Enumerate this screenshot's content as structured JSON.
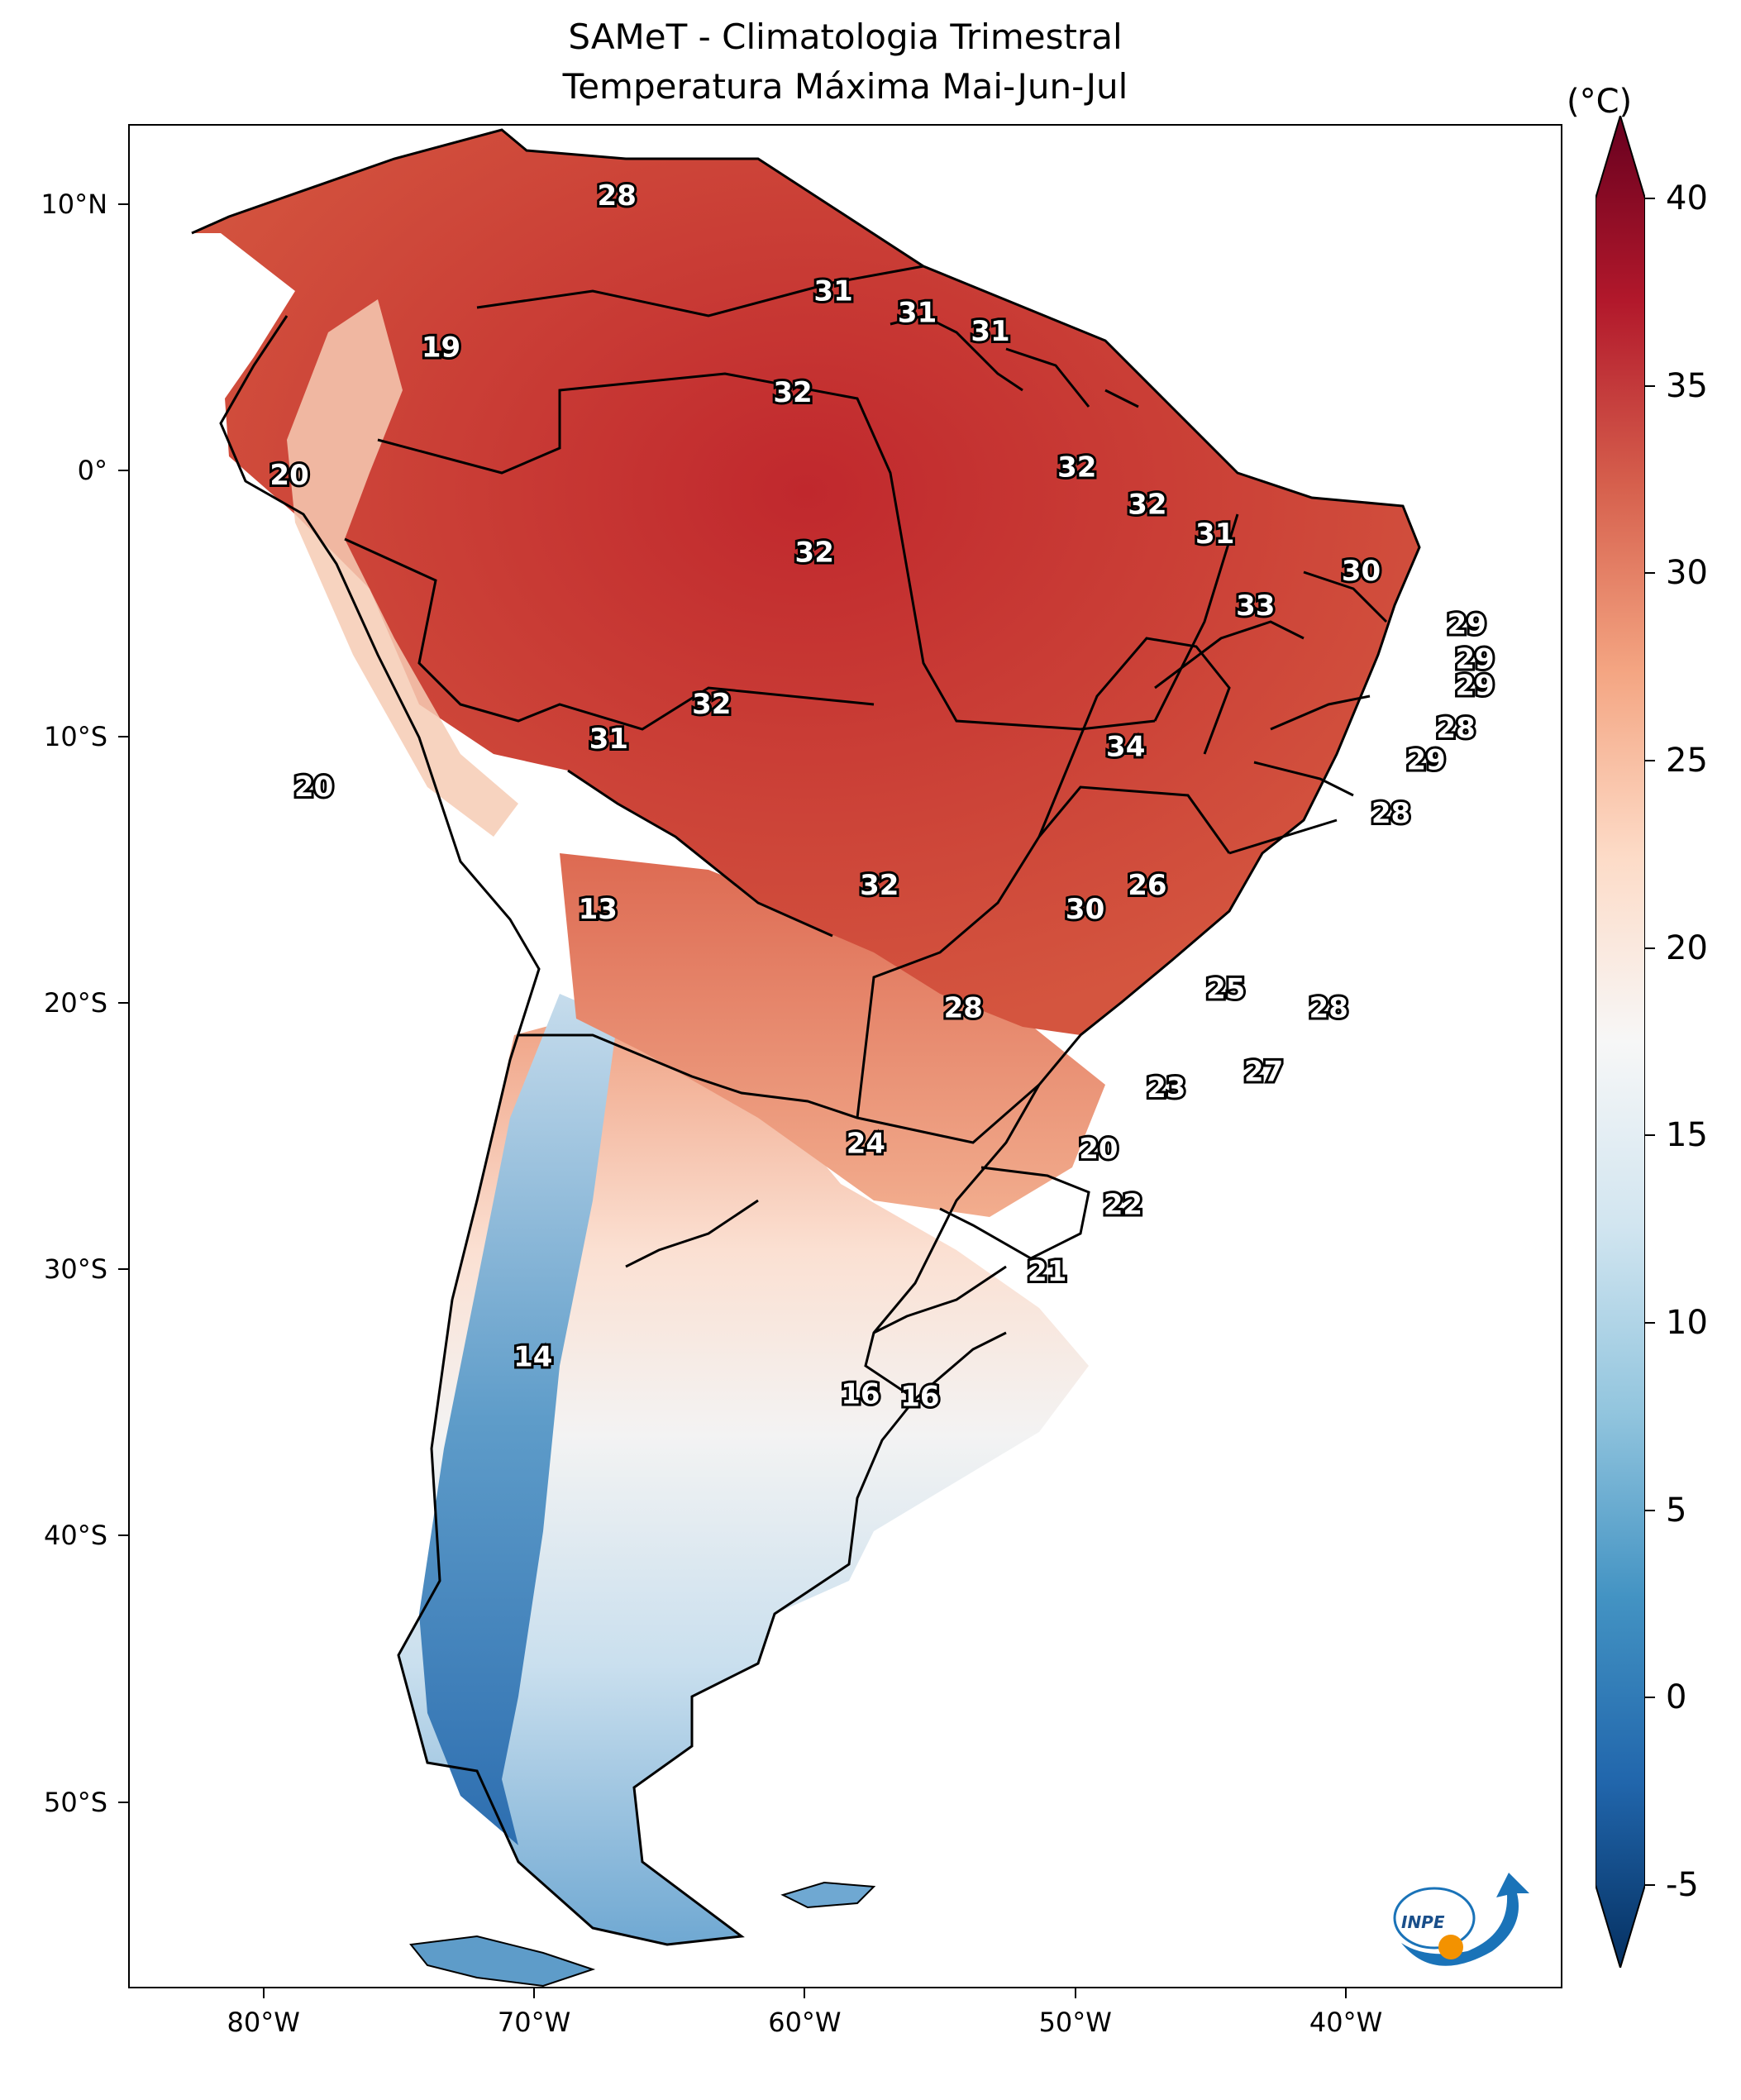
{
  "title": {
    "line1": "SAMeT - Climatologia Trimestral",
    "line2": "Temperatura Máxima   Mai-Jun-Jul"
  },
  "map": {
    "lon_range": [
      -85,
      -32
    ],
    "lat_range": [
      -57,
      13
    ],
    "x_ticks": [
      {
        "lon": -80,
        "label": "80°W"
      },
      {
        "lon": -70,
        "label": "70°W"
      },
      {
        "lon": -60,
        "label": "60°W"
      },
      {
        "lon": -50,
        "label": "50°W"
      },
      {
        "lon": -40,
        "label": "40°W"
      }
    ],
    "y_ticks": [
      {
        "lat": 10,
        "label": "10°N"
      },
      {
        "lat": 0,
        "label": "0°"
      },
      {
        "lat": -10,
        "label": "10°S"
      },
      {
        "lat": -20,
        "label": "20°S"
      },
      {
        "lat": -30,
        "label": "30°S"
      },
      {
        "lat": -40,
        "label": "40°S"
      },
      {
        "lat": -50,
        "label": "50°S"
      }
    ],
    "contour_labels": [
      {
        "lon": -67.0,
        "lat": 10.4,
        "value": "28"
      },
      {
        "lon": -59.0,
        "lat": 6.8,
        "value": "31"
      },
      {
        "lon": -55.9,
        "lat": 6.0,
        "value": "31"
      },
      {
        "lon": -53.2,
        "lat": 5.3,
        "value": "31"
      },
      {
        "lon": -73.5,
        "lat": 4.7,
        "value": "19"
      },
      {
        "lon": -60.5,
        "lat": 3.0,
        "value": "32"
      },
      {
        "lon": -79.1,
        "lat": -0.1,
        "value": "20"
      },
      {
        "lon": -50.0,
        "lat": 0.2,
        "value": "32"
      },
      {
        "lon": -47.4,
        "lat": -1.2,
        "value": "32"
      },
      {
        "lon": -59.7,
        "lat": -3.0,
        "value": "32"
      },
      {
        "lon": -44.9,
        "lat": -2.3,
        "value": "31"
      },
      {
        "lon": -39.5,
        "lat": -3.7,
        "value": "30"
      },
      {
        "lon": -43.4,
        "lat": -5.0,
        "value": "33"
      },
      {
        "lon": -35.6,
        "lat": -5.7,
        "value": "29"
      },
      {
        "lon": -35.3,
        "lat": -7.0,
        "value": "29"
      },
      {
        "lon": -35.3,
        "lat": -8.0,
        "value": "29"
      },
      {
        "lon": -63.5,
        "lat": -8.7,
        "value": "32"
      },
      {
        "lon": -67.3,
        "lat": -10.0,
        "value": "31"
      },
      {
        "lon": -36.0,
        "lat": -9.6,
        "value": "28"
      },
      {
        "lon": -48.2,
        "lat": -10.3,
        "value": "34"
      },
      {
        "lon": -37.1,
        "lat": -10.8,
        "value": "29"
      },
      {
        "lon": -78.2,
        "lat": -11.8,
        "value": "20"
      },
      {
        "lon": -38.4,
        "lat": -12.8,
        "value": "28"
      },
      {
        "lon": -57.3,
        "lat": -15.5,
        "value": "32"
      },
      {
        "lon": -47.4,
        "lat": -15.5,
        "value": "26"
      },
      {
        "lon": -49.7,
        "lat": -16.4,
        "value": "30"
      },
      {
        "lon": -67.7,
        "lat": -16.4,
        "value": "13"
      },
      {
        "lon": -44.5,
        "lat": -19.4,
        "value": "25"
      },
      {
        "lon": -54.2,
        "lat": -20.1,
        "value": "28"
      },
      {
        "lon": -40.7,
        "lat": -20.1,
        "value": "28"
      },
      {
        "lon": -43.1,
        "lat": -22.5,
        "value": "27"
      },
      {
        "lon": -46.7,
        "lat": -23.1,
        "value": "23"
      },
      {
        "lon": -57.8,
        "lat": -25.2,
        "value": "24"
      },
      {
        "lon": -49.2,
        "lat": -25.4,
        "value": "20"
      },
      {
        "lon": -48.3,
        "lat": -27.5,
        "value": "22"
      },
      {
        "lon": -51.1,
        "lat": -30.0,
        "value": "21"
      },
      {
        "lon": -70.1,
        "lat": -33.2,
        "value": "14"
      },
      {
        "lon": -58.0,
        "lat": -34.6,
        "value": "16"
      },
      {
        "lon": -55.8,
        "lat": -34.7,
        "value": "16"
      }
    ]
  },
  "colorbar": {
    "unit": "(°C)",
    "min": -5,
    "max": 40,
    "ticks": [
      {
        "value": 40,
        "label": "40"
      },
      {
        "value": 35,
        "label": "35"
      },
      {
        "value": 30,
        "label": "30"
      },
      {
        "value": 25,
        "label": "25"
      },
      {
        "value": 20,
        "label": "20"
      },
      {
        "value": 15,
        "label": "15"
      },
      {
        "value": 10,
        "label": "10"
      },
      {
        "value": 5,
        "label": "5"
      },
      {
        "value": 0,
        "label": "0"
      },
      {
        "value": -5,
        "label": "-5"
      }
    ],
    "stops": [
      "#053061",
      "#2166ac",
      "#4393c3",
      "#92c5de",
      "#d1e5f0",
      "#f7f7f7",
      "#fddbc7",
      "#f4a582",
      "#d6604d",
      "#b2182b",
      "#67001f"
    ]
  },
  "logo": {
    "text": "INPE",
    "icon": "inpe-logo",
    "colors": {
      "blue": "#1a73b8",
      "orange": "#f39200"
    }
  }
}
